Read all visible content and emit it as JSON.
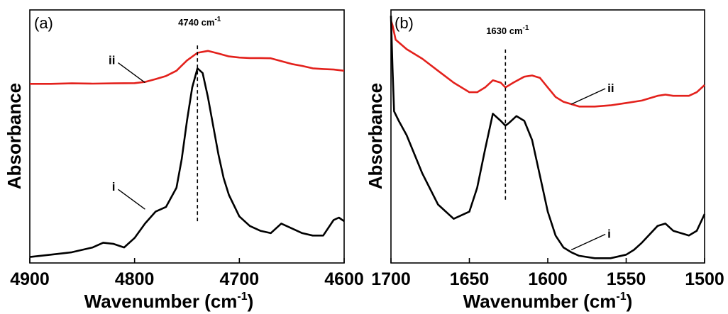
{
  "chart_data": [
    {
      "type": "line",
      "panel_label": "(a)",
      "xlabel": "Wavenumber (cm",
      "xlabel_sup": "-1",
      "xlabel_end": ")",
      "ylabel": "Absorbance",
      "xlim": [
        4900,
        4600
      ],
      "ylim": [
        0,
        1
      ],
      "x_ticks": [
        {
          "value": 4900,
          "label": "4900"
        },
        {
          "value": 4800,
          "label": "4800"
        },
        {
          "value": 4700,
          "label": "4700"
        },
        {
          "value": 4600,
          "label": "4600"
        }
      ],
      "annotation": {
        "text": "4740 cm",
        "sup": "-1",
        "x": 4740,
        "y_range": [
          0.16,
          0.9
        ]
      },
      "series": [
        {
          "name": "ii",
          "color": "#e3211c",
          "label_point": [
            4790,
            0.74
          ],
          "x": [
            4900,
            4880,
            4860,
            4840,
            4820,
            4800,
            4790,
            4780,
            4770,
            4760,
            4750,
            4740,
            4730,
            4720,
            4710,
            4700,
            4690,
            4680,
            4670,
            4660,
            4650,
            4640,
            4630,
            4620,
            4610,
            4600
          ],
          "y": [
            0.735,
            0.735,
            0.737,
            0.736,
            0.737,
            0.738,
            0.743,
            0.755,
            0.768,
            0.79,
            0.833,
            0.865,
            0.873,
            0.862,
            0.85,
            0.845,
            0.843,
            0.843,
            0.842,
            0.83,
            0.818,
            0.81,
            0.8,
            0.797,
            0.795,
            0.79
          ]
        },
        {
          "name": "i",
          "color": "#000000",
          "label_point": [
            4790,
            0.21
          ],
          "x": [
            4900,
            4880,
            4860,
            4840,
            4830,
            4820,
            4810,
            4800,
            4790,
            4780,
            4770,
            4760,
            4755,
            4750,
            4745,
            4740,
            4735,
            4730,
            4725,
            4720,
            4715,
            4710,
            4700,
            4690,
            4680,
            4670,
            4660,
            4650,
            4640,
            4630,
            4620,
            4610,
            4605,
            4600
          ],
          "y": [
            0.01,
            0.02,
            0.03,
            0.05,
            0.07,
            0.065,
            0.05,
            0.09,
            0.15,
            0.2,
            0.22,
            0.3,
            0.42,
            0.58,
            0.72,
            0.8,
            0.78,
            0.68,
            0.56,
            0.44,
            0.34,
            0.27,
            0.18,
            0.14,
            0.12,
            0.11,
            0.15,
            0.13,
            0.11,
            0.1,
            0.1,
            0.165,
            0.175,
            0.16
          ]
        }
      ]
    },
    {
      "type": "line",
      "panel_label": "(b)",
      "xlabel": "Wavenumber (cm",
      "xlabel_sup": "-1",
      "xlabel_end": ")",
      "ylabel": "Absorbance",
      "xlim": [
        1700,
        1500
      ],
      "ylim": [
        0,
        1
      ],
      "x_ticks": [
        {
          "value": 1700,
          "label": "1700"
        },
        {
          "value": 1650,
          "label": "1650"
        },
        {
          "value": 1600,
          "label": "1600"
        },
        {
          "value": 1550,
          "label": "1550"
        },
        {
          "value": 1500,
          "label": "1500"
        }
      ],
      "annotation": {
        "text": "1630 cm",
        "sup": "-1",
        "x": 1627,
        "y_range": [
          0.25,
          0.88
        ]
      },
      "series": [
        {
          "name": "ii",
          "color": "#e3211c",
          "label_point": [
            1585,
            0.65
          ],
          "x": [
            1700,
            1699,
            1697,
            1690,
            1680,
            1670,
            1660,
            1650,
            1645,
            1640,
            1635,
            1630,
            1627,
            1622,
            1615,
            1610,
            1605,
            1600,
            1595,
            1590,
            1585,
            1580,
            1570,
            1560,
            1550,
            1540,
            1530,
            1525,
            1520,
            1510,
            1505,
            1500
          ],
          "y": [
            1.0,
            0.98,
            0.92,
            0.88,
            0.84,
            0.79,
            0.74,
            0.7,
            0.7,
            0.72,
            0.75,
            0.74,
            0.72,
            0.74,
            0.765,
            0.77,
            0.76,
            0.72,
            0.68,
            0.66,
            0.65,
            0.64,
            0.64,
            0.645,
            0.655,
            0.665,
            0.685,
            0.69,
            0.685,
            0.685,
            0.7,
            0.73
          ]
        },
        {
          "name": "i",
          "color": "#000000",
          "label_point": [
            1585,
            0.04
          ],
          "x": [
            1700,
            1699,
            1698,
            1695,
            1690,
            1680,
            1670,
            1660,
            1650,
            1645,
            1640,
            1635,
            1630,
            1627,
            1625,
            1620,
            1615,
            1610,
            1605,
            1600,
            1595,
            1590,
            1585,
            1580,
            1570,
            1560,
            1550,
            1545,
            1540,
            1530,
            1525,
            1520,
            1510,
            1505,
            1500
          ],
          "y": [
            1.02,
            0.8,
            0.62,
            0.58,
            0.52,
            0.36,
            0.23,
            0.17,
            0.2,
            0.3,
            0.46,
            0.61,
            0.58,
            0.56,
            0.57,
            0.6,
            0.58,
            0.5,
            0.35,
            0.2,
            0.1,
            0.05,
            0.03,
            0.015,
            0.005,
            0.005,
            0.02,
            0.04,
            0.07,
            0.14,
            0.15,
            0.12,
            0.1,
            0.12,
            0.19
          ]
        }
      ]
    }
  ]
}
